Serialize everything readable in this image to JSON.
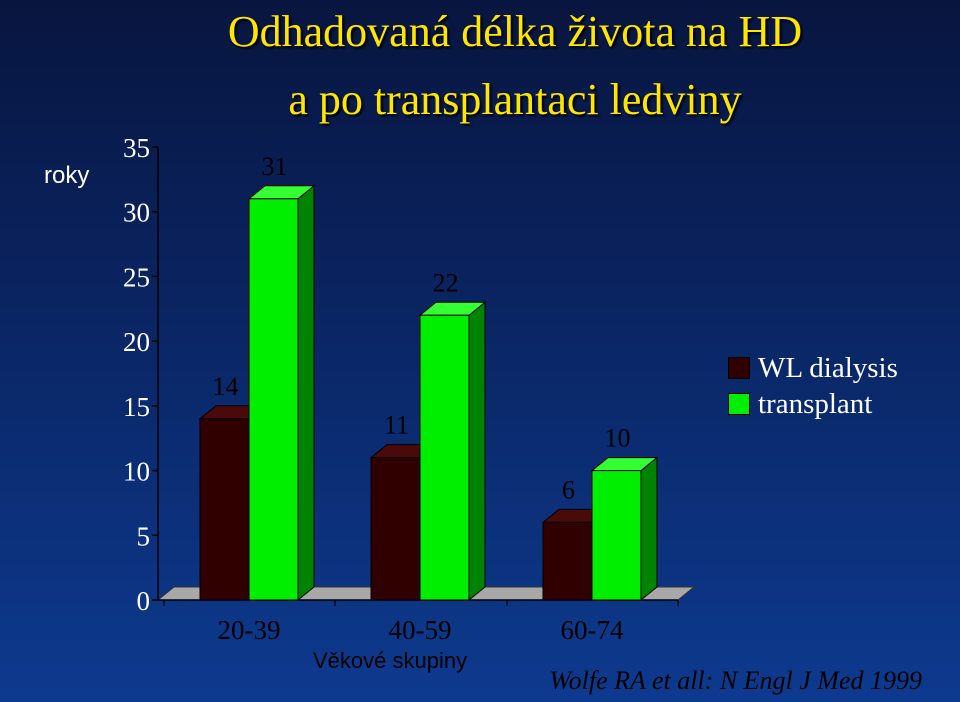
{
  "chart_data": {
    "type": "bar",
    "title": "Odhadovaná délka života na HD",
    "subtitle": "a po transplantaci ledviny",
    "ylabel": "roky",
    "xlabel": "Věkové skupiny",
    "categories": [
      "20-39",
      "40-59",
      "60-74"
    ],
    "series": [
      {
        "name": "WL dialysis",
        "values": [
          14,
          11,
          6
        ],
        "color": "#300000"
      },
      {
        "name": "transplant",
        "values": [
          31,
          22,
          10
        ],
        "color": "#00ee00"
      }
    ],
    "ylim": [
      0,
      35
    ],
    "yticks": [
      0,
      5,
      10,
      15,
      20,
      25,
      30,
      35
    ],
    "grid": false,
    "legend_position": "right",
    "source": "Wolfe RA et all: N Engl J Med 1999"
  }
}
